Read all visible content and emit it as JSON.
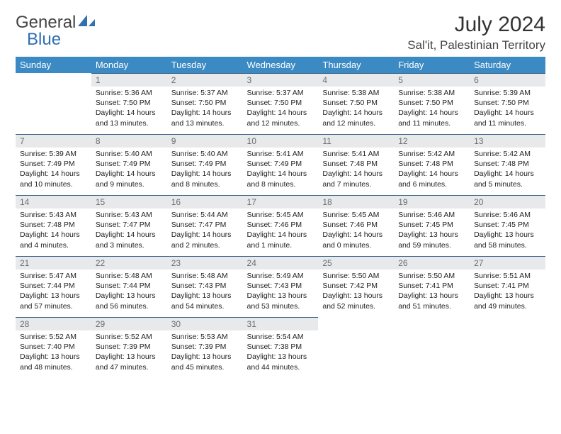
{
  "logo": {
    "part1": "General",
    "part2": "Blue"
  },
  "title": "July 2024",
  "location": "Sal'it, Palestinian Territory",
  "colors": {
    "header_bg": "#3b8ac4",
    "header_text": "#ffffff",
    "daynum_bg": "#e7e9eb",
    "daynum_text": "#6b6f73",
    "rule": "#2f5a82",
    "logo_accent": "#2f6fb2"
  },
  "weekdays": [
    "Sunday",
    "Monday",
    "Tuesday",
    "Wednesday",
    "Thursday",
    "Friday",
    "Saturday"
  ],
  "start_offset": 1,
  "days": [
    {
      "n": 1,
      "sr": "5:36 AM",
      "ss": "7:50 PM",
      "dl": "14 hours and 13 minutes."
    },
    {
      "n": 2,
      "sr": "5:37 AM",
      "ss": "7:50 PM",
      "dl": "14 hours and 13 minutes."
    },
    {
      "n": 3,
      "sr": "5:37 AM",
      "ss": "7:50 PM",
      "dl": "14 hours and 12 minutes."
    },
    {
      "n": 4,
      "sr": "5:38 AM",
      "ss": "7:50 PM",
      "dl": "14 hours and 12 minutes."
    },
    {
      "n": 5,
      "sr": "5:38 AM",
      "ss": "7:50 PM",
      "dl": "14 hours and 11 minutes."
    },
    {
      "n": 6,
      "sr": "5:39 AM",
      "ss": "7:50 PM",
      "dl": "14 hours and 11 minutes."
    },
    {
      "n": 7,
      "sr": "5:39 AM",
      "ss": "7:49 PM",
      "dl": "14 hours and 10 minutes."
    },
    {
      "n": 8,
      "sr": "5:40 AM",
      "ss": "7:49 PM",
      "dl": "14 hours and 9 minutes."
    },
    {
      "n": 9,
      "sr": "5:40 AM",
      "ss": "7:49 PM",
      "dl": "14 hours and 8 minutes."
    },
    {
      "n": 10,
      "sr": "5:41 AM",
      "ss": "7:49 PM",
      "dl": "14 hours and 8 minutes."
    },
    {
      "n": 11,
      "sr": "5:41 AM",
      "ss": "7:48 PM",
      "dl": "14 hours and 7 minutes."
    },
    {
      "n": 12,
      "sr": "5:42 AM",
      "ss": "7:48 PM",
      "dl": "14 hours and 6 minutes."
    },
    {
      "n": 13,
      "sr": "5:42 AM",
      "ss": "7:48 PM",
      "dl": "14 hours and 5 minutes."
    },
    {
      "n": 14,
      "sr": "5:43 AM",
      "ss": "7:48 PM",
      "dl": "14 hours and 4 minutes."
    },
    {
      "n": 15,
      "sr": "5:43 AM",
      "ss": "7:47 PM",
      "dl": "14 hours and 3 minutes."
    },
    {
      "n": 16,
      "sr": "5:44 AM",
      "ss": "7:47 PM",
      "dl": "14 hours and 2 minutes."
    },
    {
      "n": 17,
      "sr": "5:45 AM",
      "ss": "7:46 PM",
      "dl": "14 hours and 1 minute."
    },
    {
      "n": 18,
      "sr": "5:45 AM",
      "ss": "7:46 PM",
      "dl": "14 hours and 0 minutes."
    },
    {
      "n": 19,
      "sr": "5:46 AM",
      "ss": "7:45 PM",
      "dl": "13 hours and 59 minutes."
    },
    {
      "n": 20,
      "sr": "5:46 AM",
      "ss": "7:45 PM",
      "dl": "13 hours and 58 minutes."
    },
    {
      "n": 21,
      "sr": "5:47 AM",
      "ss": "7:44 PM",
      "dl": "13 hours and 57 minutes."
    },
    {
      "n": 22,
      "sr": "5:48 AM",
      "ss": "7:44 PM",
      "dl": "13 hours and 56 minutes."
    },
    {
      "n": 23,
      "sr": "5:48 AM",
      "ss": "7:43 PM",
      "dl": "13 hours and 54 minutes."
    },
    {
      "n": 24,
      "sr": "5:49 AM",
      "ss": "7:43 PM",
      "dl": "13 hours and 53 minutes."
    },
    {
      "n": 25,
      "sr": "5:50 AM",
      "ss": "7:42 PM",
      "dl": "13 hours and 52 minutes."
    },
    {
      "n": 26,
      "sr": "5:50 AM",
      "ss": "7:41 PM",
      "dl": "13 hours and 51 minutes."
    },
    {
      "n": 27,
      "sr": "5:51 AM",
      "ss": "7:41 PM",
      "dl": "13 hours and 49 minutes."
    },
    {
      "n": 28,
      "sr": "5:52 AM",
      "ss": "7:40 PM",
      "dl": "13 hours and 48 minutes."
    },
    {
      "n": 29,
      "sr": "5:52 AM",
      "ss": "7:39 PM",
      "dl": "13 hours and 47 minutes."
    },
    {
      "n": 30,
      "sr": "5:53 AM",
      "ss": "7:39 PM",
      "dl": "13 hours and 45 minutes."
    },
    {
      "n": 31,
      "sr": "5:54 AM",
      "ss": "7:38 PM",
      "dl": "13 hours and 44 minutes."
    }
  ],
  "labels": {
    "sunrise": "Sunrise:",
    "sunset": "Sunset:",
    "daylight": "Daylight:"
  }
}
